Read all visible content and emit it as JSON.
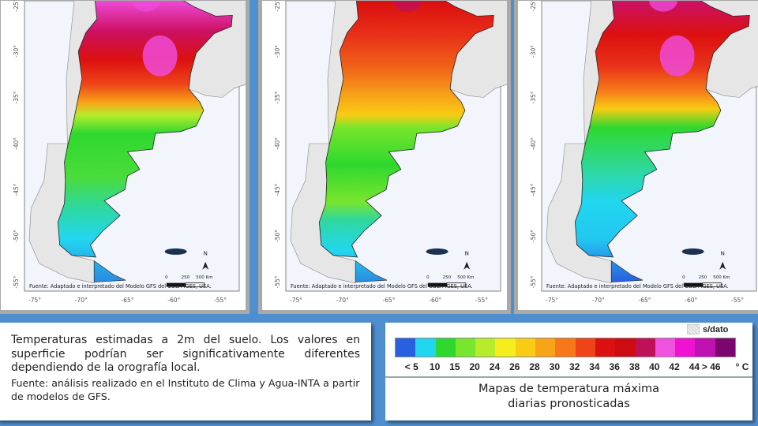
{
  "maps": {
    "source_note": "Fuente: Adaptado e interpretado del Modelo GFS del COLA-IGES, USA.",
    "lat_labels": [
      "-25°",
      "-30°",
      "-35°",
      "-40°",
      "-45°",
      "-50°",
      "-55°"
    ],
    "lon_labels": [
      "-75°",
      "-70°",
      "-65°",
      "-60°",
      "-55°"
    ],
    "north_label": "N",
    "scale_labels": [
      "0",
      "250",
      "500 Km"
    ],
    "panel_count": 3
  },
  "textbox": {
    "main": "Temperaturas estimadas a 2m del suelo. Los valores en superficie podrían ser significativamente diferentes dependiendo de la orografía local.",
    "source": "Fuente: análisis realizado en el Instituto de Clima y Agua-INTA a partir de modelos de GFS."
  },
  "legend": {
    "no_data_label": "s/dato",
    "unit": "° C",
    "labels": [
      "< 5",
      "10",
      "15",
      "20",
      "24",
      "26",
      "28",
      "30",
      "32",
      "34",
      "36",
      "38",
      "40",
      "42",
      "44",
      "> 46"
    ],
    "colors": [
      "#2a5fe0",
      "#22d6f0",
      "#2ed82e",
      "#78e62c",
      "#b6ec2c",
      "#f6ee1c",
      "#f8cc14",
      "#f8a418",
      "#f67818",
      "#ee4418",
      "#dc1010",
      "#cc0c10",
      "#c01058",
      "#f052e0",
      "#f012d0",
      "#c012b0",
      "#7c0670"
    ],
    "title_line1": "Mapas de temperatura máxima",
    "title_line2": "diarias pronosticadas"
  },
  "colors": {
    "background": "#4f8fcf",
    "frame": "#a9a9a9"
  }
}
